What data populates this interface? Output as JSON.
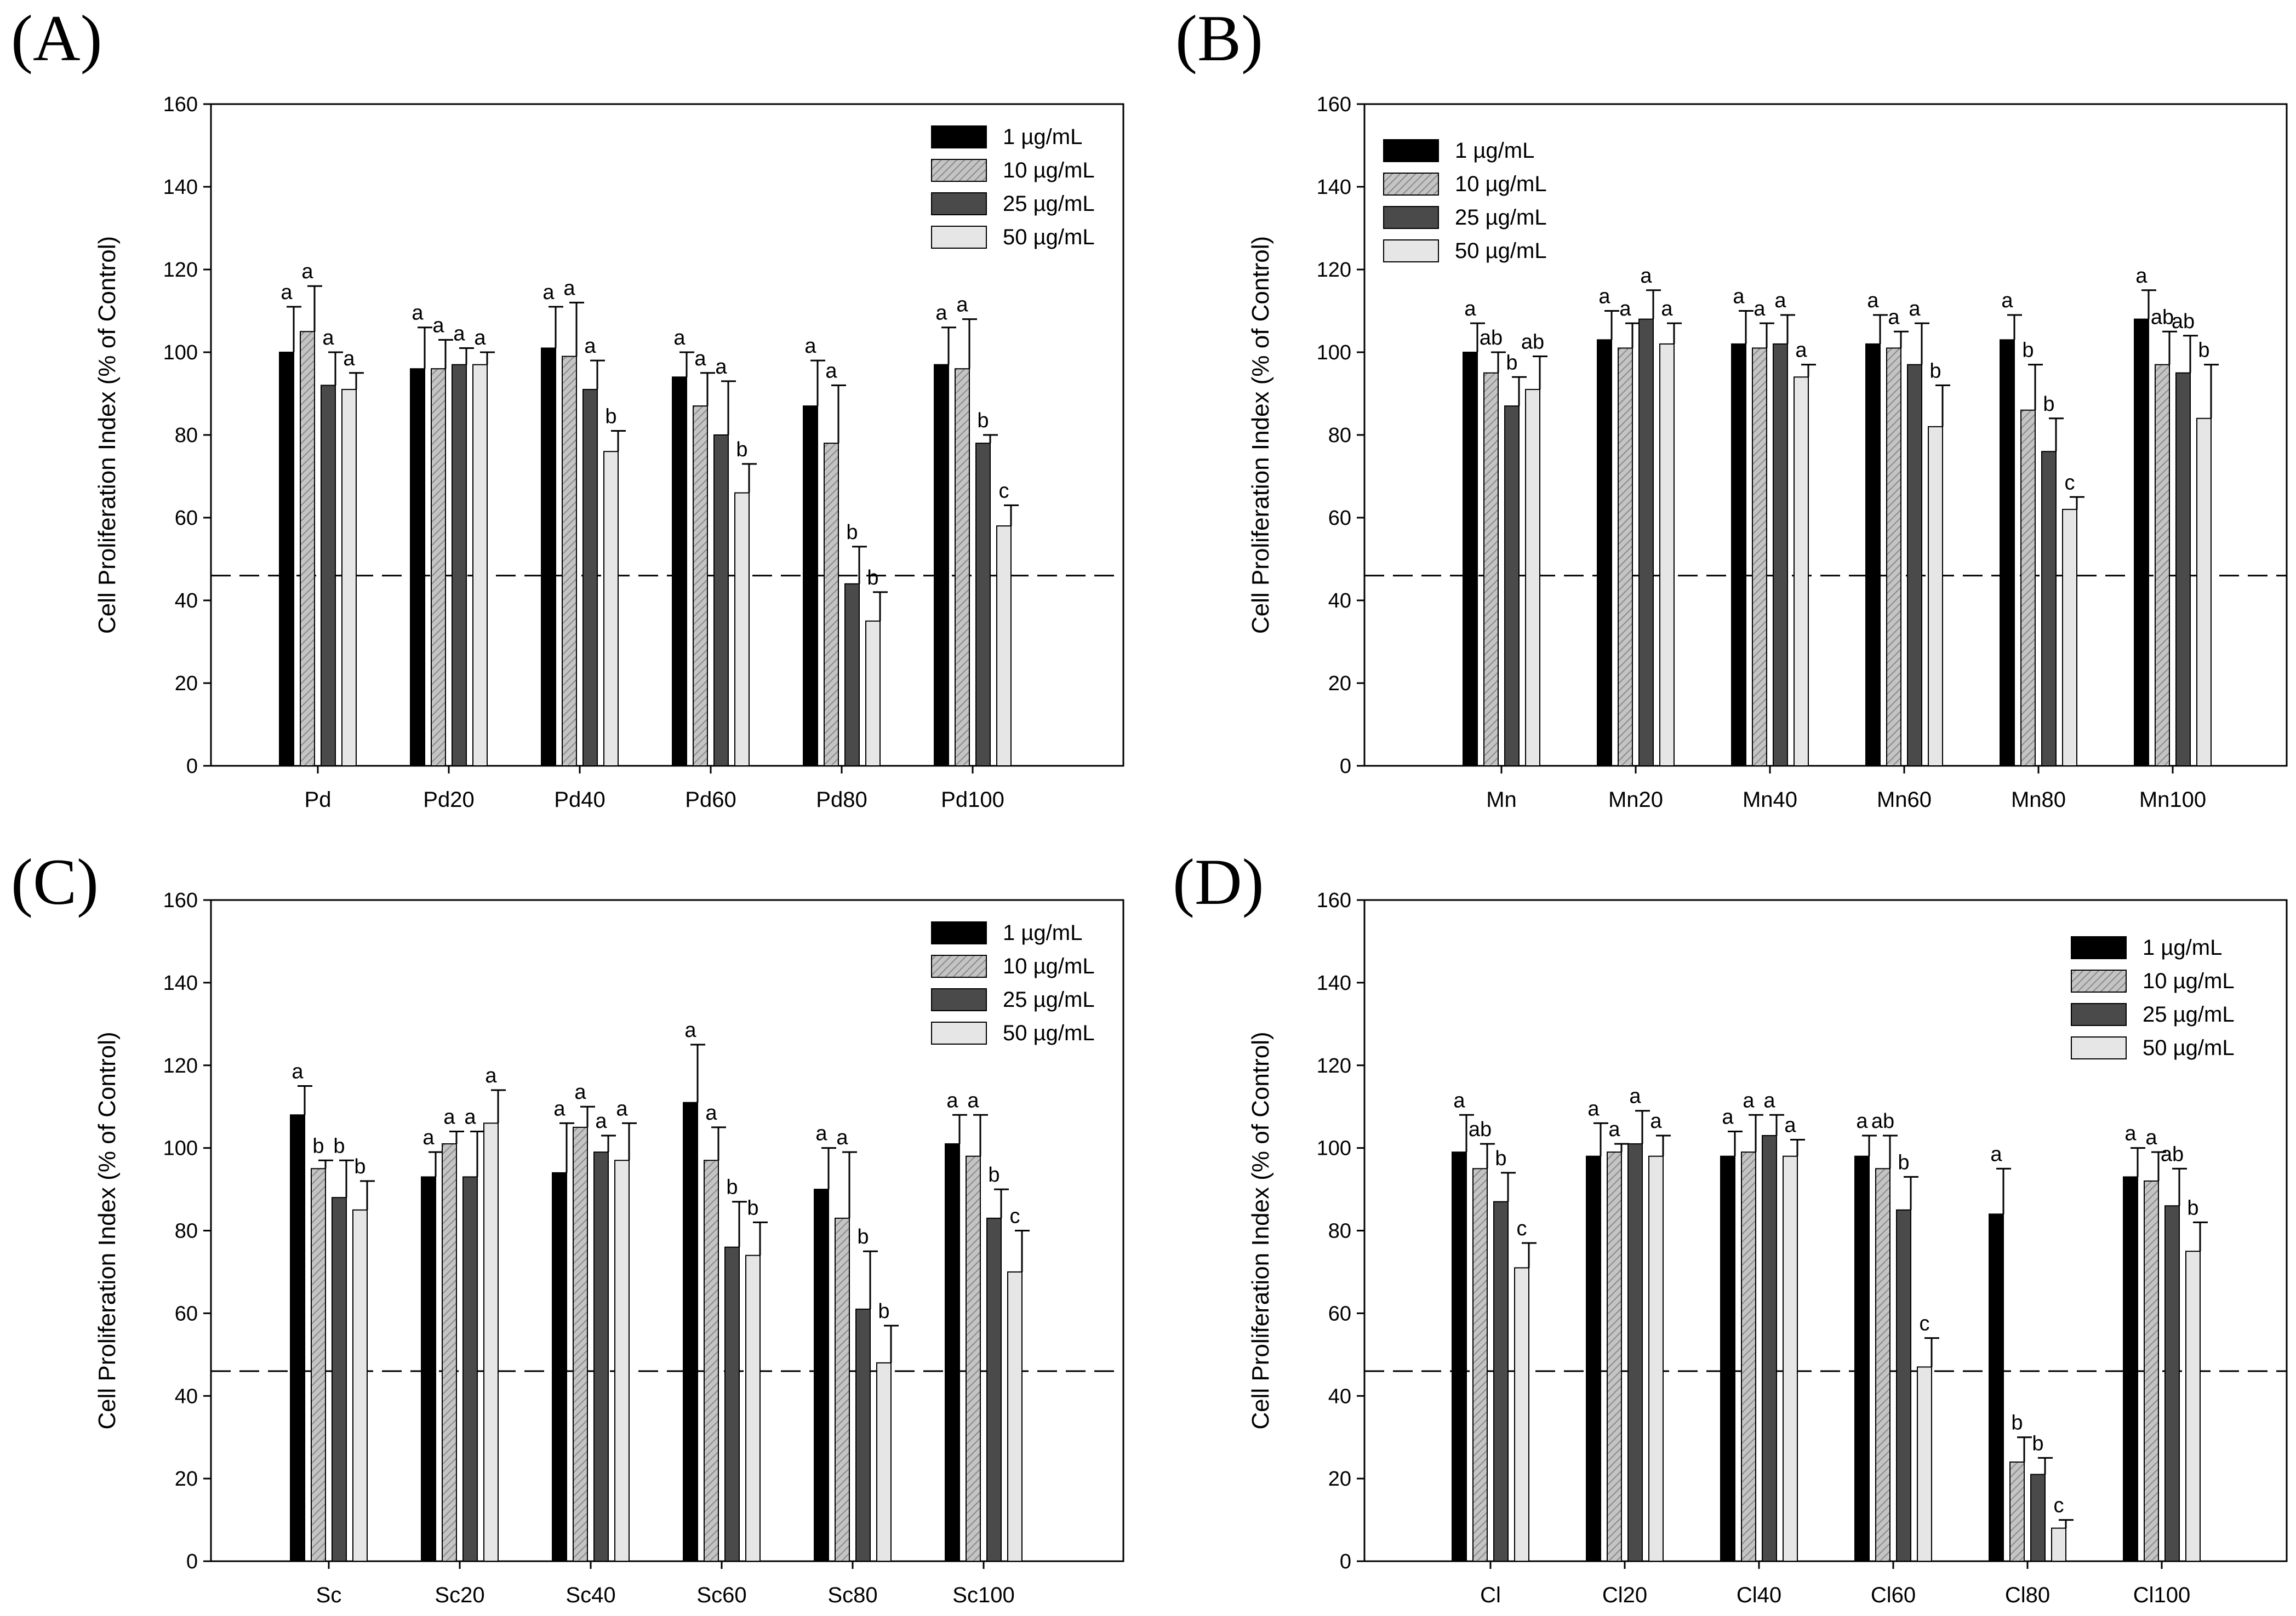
{
  "legend_labels": [
    "1 µg/mL",
    "10 µg/mL",
    "25 µg/mL",
    "50 µg/mL"
  ],
  "colors": {
    "s1": "#000000",
    "s2": "#b8b8b8",
    "s3": "#4a4a4a",
    "s4": "#e6e6e6",
    "axis": "#000000",
    "hatch": "#8a8a8a"
  },
  "chart_data": [
    {
      "type": "bar",
      "panel": "(A)",
      "ylabel": "Cell Proliferation Index (% of Control)",
      "ylim": [
        0,
        160
      ],
      "yticks": [
        0,
        20,
        40,
        60,
        80,
        100,
        120,
        140,
        160
      ],
      "reference_line": 46,
      "legend_position": "top-right",
      "categories": [
        "Pd",
        "Pd20",
        "Pd40",
        "Pd60",
        "Pd80",
        "Pd100"
      ],
      "series": [
        {
          "name": "1 µg/mL",
          "values": [
            100,
            96,
            101,
            94,
            87,
            97
          ],
          "errors": [
            11,
            10,
            10,
            6,
            11,
            9
          ],
          "letters": [
            "a",
            "a",
            "a",
            "a",
            "a",
            "a"
          ]
        },
        {
          "name": "10 µg/mL",
          "values": [
            105,
            96,
            99,
            87,
            78,
            96
          ],
          "errors": [
            11,
            7,
            13,
            8,
            14,
            12
          ],
          "letters": [
            "a",
            "a",
            "a",
            "a",
            "a",
            "a"
          ]
        },
        {
          "name": "25 µg/mL",
          "values": [
            92,
            97,
            91,
            80,
            44,
            78
          ],
          "errors": [
            8,
            4,
            7,
            13,
            9,
            2
          ],
          "letters": [
            "a",
            "a",
            "a",
            "a",
            "b",
            "b"
          ]
        },
        {
          "name": "50 µg/mL",
          "values": [
            91,
            97,
            76,
            66,
            35,
            58
          ],
          "errors": [
            4,
            3,
            5,
            7,
            7,
            5
          ],
          "letters": [
            "a",
            "a",
            "b",
            "b",
            "b",
            "c"
          ]
        }
      ]
    },
    {
      "type": "bar",
      "panel": "(B)",
      "ylabel": "Cell Proliferation Index (% of Control)",
      "ylim": [
        0,
        160
      ],
      "yticks": [
        0,
        20,
        40,
        60,
        80,
        100,
        120,
        140,
        160
      ],
      "reference_line": 46,
      "legend_position": "top-left",
      "categories": [
        "Mn",
        "Mn20",
        "Mn40",
        "Mn60",
        "Mn80",
        "Mn100"
      ],
      "series": [
        {
          "name": "1 µg/mL",
          "values": [
            100,
            103,
            102,
            102,
            103,
            108
          ],
          "errors": [
            7,
            7,
            8,
            7,
            6,
            7
          ],
          "letters": [
            "a",
            "a",
            "a",
            "a",
            "a",
            "a"
          ]
        },
        {
          "name": "10 µg/mL",
          "values": [
            95,
            101,
            101,
            101,
            86,
            97
          ],
          "errors": [
            5,
            6,
            6,
            4,
            11,
            8
          ],
          "letters": [
            "ab",
            "a",
            "a",
            "a",
            "b",
            "ab"
          ]
        },
        {
          "name": "25 µg/mL",
          "values": [
            87,
            108,
            102,
            97,
            76,
            95
          ],
          "errors": [
            7,
            7,
            7,
            10,
            8,
            9
          ],
          "letters": [
            "b",
            "a",
            "a",
            "a",
            "b",
            "ab"
          ]
        },
        {
          "name": "50 µg/mL",
          "values": [
            91,
            102,
            94,
            82,
            62,
            84
          ],
          "errors": [
            8,
            5,
            3,
            10,
            3,
            13
          ],
          "letters": [
            "ab",
            "a",
            "a",
            "b",
            "c",
            "b"
          ]
        }
      ]
    },
    {
      "type": "bar",
      "panel": "(C)",
      "ylabel": "Cell Proliferation Index (% of Control)",
      "ylim": [
        0,
        160
      ],
      "yticks": [
        0,
        20,
        40,
        60,
        80,
        100,
        120,
        140,
        160
      ],
      "reference_line": 46,
      "legend_position": "top-right",
      "categories": [
        "Sc",
        "Sc20",
        "Sc40",
        "Sc60",
        "Sc80",
        "Sc100"
      ],
      "series": [
        {
          "name": "1 µg/mL",
          "values": [
            108,
            93,
            94,
            111,
            90,
            101
          ],
          "errors": [
            7,
            6,
            12,
            14,
            10,
            7
          ],
          "letters": [
            "a",
            "a",
            "a",
            "a",
            "a",
            "a"
          ]
        },
        {
          "name": "10 µg/mL",
          "values": [
            95,
            101,
            105,
            97,
            83,
            98
          ],
          "errors": [
            2,
            3,
            5,
            8,
            16,
            10
          ],
          "letters": [
            "b",
            "a",
            "a",
            "a",
            "a",
            "a"
          ]
        },
        {
          "name": "25 µg/mL",
          "values": [
            88,
            93,
            99,
            76,
            61,
            83
          ],
          "errors": [
            9,
            11,
            4,
            11,
            14,
            7
          ],
          "letters": [
            "b",
            "a",
            "a",
            "b",
            "b",
            "b"
          ]
        },
        {
          "name": "50 µg/mL",
          "values": [
            85,
            106,
            97,
            74,
            48,
            70
          ],
          "errors": [
            7,
            8,
            9,
            8,
            9,
            10
          ],
          "letters": [
            "b",
            "a",
            "a",
            "b",
            "b",
            "c"
          ]
        }
      ]
    },
    {
      "type": "bar",
      "panel": "(D)",
      "ylabel": "Cell Proliferation Index (% of Control)",
      "ylim": [
        0,
        160
      ],
      "yticks": [
        0,
        20,
        40,
        60,
        80,
        100,
        120,
        140,
        160
      ],
      "reference_line": 46,
      "legend_position": "top-right",
      "categories": [
        "Cl",
        "Cl20",
        "Cl40",
        "Cl60",
        "Cl80",
        "Cl100"
      ],
      "series": [
        {
          "name": "1 µg/mL",
          "values": [
            99,
            98,
            98,
            98,
            84,
            93
          ],
          "errors": [
            9,
            8,
            6,
            5,
            11,
            7
          ],
          "letters": [
            "a",
            "a",
            "a",
            "a",
            "a",
            "a"
          ]
        },
        {
          "name": "10 µg/mL",
          "values": [
            95,
            99,
            99,
            95,
            24,
            92
          ],
          "errors": [
            6,
            2,
            9,
            8,
            6,
            7
          ],
          "letters": [
            "ab",
            "a",
            "a",
            "ab",
            "b",
            "a"
          ]
        },
        {
          "name": "25 µg/mL",
          "values": [
            87,
            101,
            103,
            85,
            21,
            86
          ],
          "errors": [
            7,
            8,
            5,
            8,
            4,
            9
          ],
          "letters": [
            "b",
            "a",
            "a",
            "b",
            "b",
            "ab"
          ]
        },
        {
          "name": "50 µg/mL",
          "values": [
            71,
            98,
            98,
            47,
            8,
            75
          ],
          "errors": [
            6,
            5,
            4,
            7,
            2,
            7
          ],
          "letters": [
            "c",
            "a",
            "a",
            "c",
            "c",
            "b"
          ]
        }
      ]
    }
  ]
}
